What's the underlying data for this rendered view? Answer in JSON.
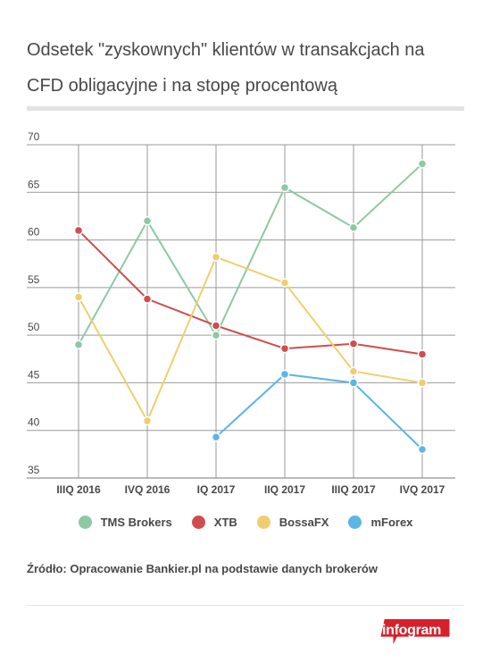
{
  "header": {
    "title": "Odsetek \"zyskownych\" klientów w transakcjach na CFD obligacyjne i na stopę procentową"
  },
  "chart_data": {
    "type": "line",
    "title": "Odsetek \"zyskownych\" klientów w transakcjach na CFD obligacyjne i na stopę procentową",
    "categories": [
      "IIIQ 2016",
      "IVQ 2016",
      "IQ 2017",
      "IIQ 2017",
      "IIIQ 2017",
      "IVQ 2017"
    ],
    "ylim": [
      35,
      70
    ],
    "yticks": [
      35,
      40,
      45,
      50,
      55,
      60,
      65,
      70
    ],
    "grid": true,
    "legend_position": "bottom",
    "series": [
      {
        "name": "TMS Brokers",
        "color": "#8dc9a4",
        "values": [
          49,
          62,
          50,
          65.5,
          61.3,
          68
        ]
      },
      {
        "name": "XTB",
        "color": "#d14d4d",
        "values": [
          61,
          53.8,
          51,
          48.6,
          49.1,
          48
        ]
      },
      {
        "name": "BossaFX",
        "color": "#f0ce6e",
        "values": [
          54,
          41,
          58.2,
          55.5,
          46.2,
          45
        ]
      },
      {
        "name": "mForex",
        "color": "#5db5e5",
        "values": [
          null,
          null,
          39.3,
          45.9,
          45,
          38
        ]
      }
    ]
  },
  "footer": {
    "source": "Źródło: Opracowanie Bankier.pl na podstawie danych brokerów",
    "logo": "infogram",
    "logo_color": "#d6212a"
  }
}
